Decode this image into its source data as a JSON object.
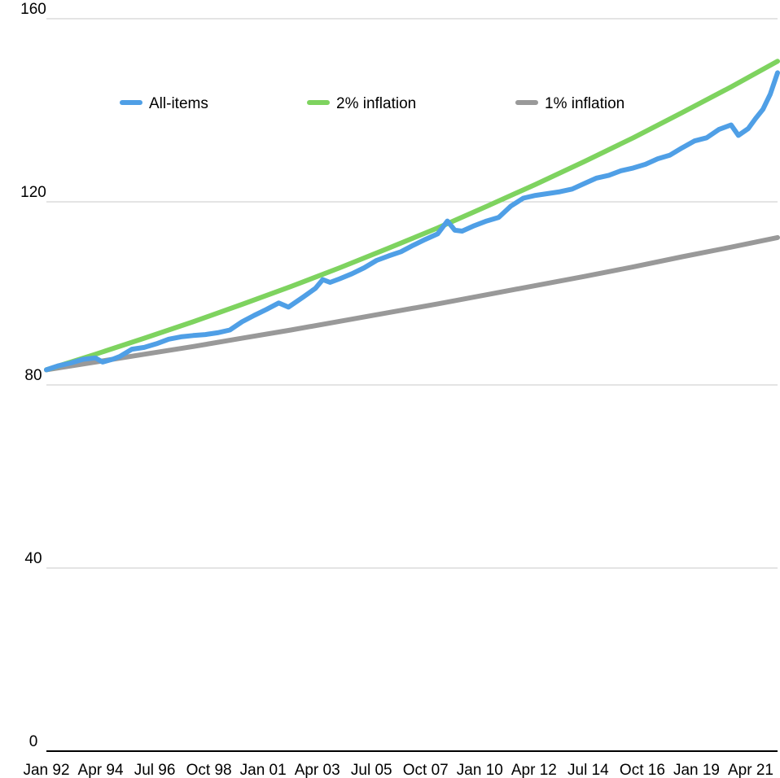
{
  "chart_data": {
    "type": "line",
    "title": "",
    "xlabel": "",
    "ylabel": "",
    "ylim": [
      0,
      160
    ],
    "yticks": [
      0,
      40,
      80,
      120,
      160
    ],
    "xticks": [
      "Jan 92",
      "Apr 94",
      "Jul 96",
      "Oct 98",
      "Jan 01",
      "Apr 03",
      "Jul 05",
      "Oct 07",
      "Jan 10",
      "Apr 12",
      "Jul 14",
      "Oct 16",
      "Jan 19",
      "Apr 21"
    ],
    "xrange": [
      1992.0,
      2021.9
    ],
    "grid": true,
    "legend_position": "top",
    "series": [
      {
        "name": "All-items",
        "color": "#4f9fe6",
        "points": [
          [
            1992.0,
            83.3
          ],
          [
            1992.5,
            84.2
          ],
          [
            1993.0,
            84.8
          ],
          [
            1993.5,
            85.6
          ],
          [
            1994.0,
            85.9
          ],
          [
            1994.3,
            85.0
          ],
          [
            1994.7,
            85.6
          ],
          [
            1995.0,
            86.2
          ],
          [
            1995.5,
            87.8
          ],
          [
            1996.0,
            88.2
          ],
          [
            1996.5,
            89.0
          ],
          [
            1997.0,
            90.0
          ],
          [
            1997.5,
            90.5
          ],
          [
            1998.0,
            90.8
          ],
          [
            1998.5,
            91.0
          ],
          [
            1999.0,
            91.4
          ],
          [
            1999.5,
            92.0
          ],
          [
            2000.0,
            93.8
          ],
          [
            2000.5,
            95.2
          ],
          [
            2001.0,
            96.5
          ],
          [
            2001.5,
            97.9
          ],
          [
            2001.9,
            97.0
          ],
          [
            2002.5,
            99.2
          ],
          [
            2003.0,
            101.1
          ],
          [
            2003.3,
            103.0
          ],
          [
            2003.6,
            102.4
          ],
          [
            2004.0,
            103.2
          ],
          [
            2004.5,
            104.3
          ],
          [
            2005.0,
            105.6
          ],
          [
            2005.5,
            107.2
          ],
          [
            2006.0,
            108.2
          ],
          [
            2006.5,
            109.1
          ],
          [
            2007.0,
            110.5
          ],
          [
            2007.5,
            111.8
          ],
          [
            2008.0,
            113.0
          ],
          [
            2008.4,
            115.8
          ],
          [
            2008.7,
            113.8
          ],
          [
            2009.0,
            113.6
          ],
          [
            2009.5,
            114.8
          ],
          [
            2010.0,
            115.8
          ],
          [
            2010.5,
            116.6
          ],
          [
            2011.0,
            119.1
          ],
          [
            2011.5,
            120.8
          ],
          [
            2012.0,
            121.4
          ],
          [
            2012.5,
            121.8
          ],
          [
            2013.0,
            122.2
          ],
          [
            2013.5,
            122.8
          ],
          [
            2014.0,
            124.0
          ],
          [
            2014.5,
            125.2
          ],
          [
            2015.0,
            125.8
          ],
          [
            2015.5,
            126.8
          ],
          [
            2016.0,
            127.4
          ],
          [
            2016.5,
            128.2
          ],
          [
            2017.0,
            129.4
          ],
          [
            2017.5,
            130.2
          ],
          [
            2018.0,
            131.8
          ],
          [
            2018.5,
            133.3
          ],
          [
            2019.0,
            134.0
          ],
          [
            2019.5,
            135.8
          ],
          [
            2020.0,
            136.8
          ],
          [
            2020.3,
            134.5
          ],
          [
            2020.7,
            136.0
          ],
          [
            2021.0,
            138.2
          ],
          [
            2021.3,
            140.2
          ],
          [
            2021.6,
            143.5
          ],
          [
            2021.9,
            148.2
          ]
        ]
      },
      {
        "name": "2% inflation",
        "color": "#7ed35f",
        "points": [
          [
            1992.0,
            83.3
          ],
          [
            1994.0,
            86.7
          ],
          [
            1996.0,
            90.2
          ],
          [
            1998.0,
            93.8
          ],
          [
            2000.0,
            97.6
          ],
          [
            2002.0,
            101.5
          ],
          [
            2004.0,
            105.6
          ],
          [
            2006.0,
            109.9
          ],
          [
            2008.0,
            114.3
          ],
          [
            2010.0,
            119.0
          ],
          [
            2012.0,
            123.8
          ],
          [
            2014.0,
            128.8
          ],
          [
            2016.0,
            134.0
          ],
          [
            2018.0,
            139.5
          ],
          [
            2020.0,
            145.1
          ],
          [
            2021.9,
            150.7
          ]
        ]
      },
      {
        "name": "1% inflation",
        "color": "#999999",
        "points": [
          [
            1992.0,
            83.3
          ],
          [
            1994.0,
            85.0
          ],
          [
            1996.0,
            86.7
          ],
          [
            1998.0,
            88.4
          ],
          [
            2000.0,
            90.2
          ],
          [
            2002.0,
            92.0
          ],
          [
            2004.0,
            93.9
          ],
          [
            2006.0,
            95.8
          ],
          [
            2008.0,
            97.7
          ],
          [
            2010.0,
            99.7
          ],
          [
            2012.0,
            101.7
          ],
          [
            2014.0,
            103.7
          ],
          [
            2016.0,
            105.8
          ],
          [
            2018.0,
            108.0
          ],
          [
            2020.0,
            110.1
          ],
          [
            2021.9,
            112.2
          ]
        ]
      }
    ]
  }
}
